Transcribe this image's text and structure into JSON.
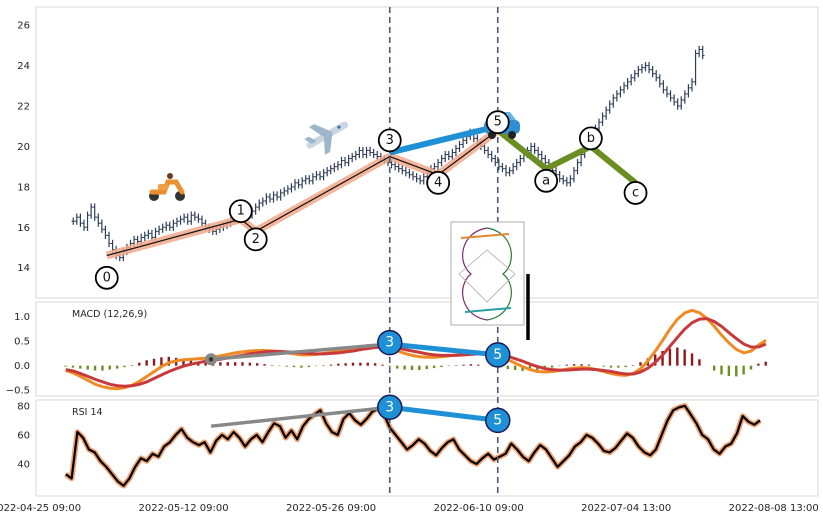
{
  "chart_data": {
    "type": "line",
    "x_axis": {
      "tick_labels": [
        "2022-04-25 09:00",
        "2022-05-12 09:00",
        "2022-05-26 09:00",
        "2022-06-10 09:00",
        "2022-07-04 13:00",
        "2022-08-08 13:00"
      ],
      "range": [
        0,
        210
      ]
    },
    "grid": true,
    "vertical_markers": [
      95,
      124
    ],
    "panels": [
      {
        "id": "price",
        "type": "ohlc",
        "label": "",
        "yticks": [
          14,
          16,
          18,
          20,
          22,
          24,
          26
        ],
        "ylim": [
          12.5,
          26.9
        ],
        "close": [
          16.3,
          16.5,
          16.2,
          16.0,
          16.6,
          17.0,
          16.5,
          16.2,
          15.9,
          15.6,
          15.2,
          14.9,
          14.6,
          14.5,
          14.8,
          15.0,
          15.2,
          15.4,
          15.3,
          15.5,
          15.6,
          15.7,
          15.5,
          15.8,
          15.9,
          16.0,
          16.1,
          16.0,
          16.2,
          16.3,
          16.4,
          16.5,
          16.3,
          16.6,
          16.5,
          16.4,
          16.2,
          16.0,
          15.9,
          15.8,
          15.9,
          16.0,
          16.1,
          16.2,
          16.3,
          16.4,
          16.6,
          16.8,
          16.7,
          16.6,
          16.8,
          17.0,
          17.2,
          17.3,
          17.5,
          17.4,
          17.6,
          17.5,
          17.7,
          17.8,
          17.9,
          18.0,
          18.2,
          18.1,
          18.3,
          18.4,
          18.3,
          18.5,
          18.6,
          18.5,
          18.7,
          18.8,
          18.9,
          19.0,
          19.1,
          19.3,
          19.2,
          19.4,
          19.5,
          19.6,
          19.8,
          19.6,
          19.8,
          19.7,
          19.6,
          19.5,
          19.4,
          19.3,
          19.2,
          19.1,
          19.0,
          18.9,
          18.8,
          18.7,
          18.6,
          18.5,
          18.4,
          18.3,
          18.5,
          18.7,
          18.9,
          19.0,
          19.2,
          19.4,
          19.6,
          19.5,
          19.7,
          19.9,
          20.1,
          20.3,
          20.5,
          20.7,
          20.4,
          20.2,
          20.0,
          19.8,
          19.6,
          19.4,
          19.2,
          19.0,
          18.9,
          18.7,
          18.8,
          19.0,
          19.2,
          19.4,
          19.6,
          19.8,
          20.0,
          19.8,
          19.6,
          19.4,
          19.2,
          19.0,
          18.8,
          18.6,
          18.4,
          18.3,
          18.2,
          18.4,
          18.8,
          19.2,
          19.6,
          20.0,
          20.3,
          20.6,
          20.9,
          21.2,
          21.5,
          21.8,
          22.1,
          22.4,
          22.6,
          22.8,
          23.0,
          23.2,
          23.4,
          23.6,
          23.8,
          23.9,
          24.0,
          23.8,
          23.6,
          23.4,
          23.1,
          22.8,
          22.6,
          22.4,
          22.2,
          22.0,
          22.3,
          22.6,
          22.9,
          23.2,
          24.6,
          24.8,
          24.5
        ]
      },
      {
        "id": "macd",
        "type": "line",
        "label": "MACD (12,26,9)",
        "yticks": [
          -0.5,
          0.0,
          0.5,
          1.0
        ],
        "tick_labels": [
          "−0.5",
          "0.0",
          "0.5",
          "1.0"
        ],
        "ylim": [
          -0.62,
          1.3
        ],
        "macd": [
          -0.1,
          -0.15,
          -0.22,
          -0.3,
          -0.38,
          -0.43,
          -0.46,
          -0.47,
          -0.45,
          -0.4,
          -0.32,
          -0.22,
          -0.12,
          -0.02,
          0.06,
          0.1,
          0.12,
          0.13,
          0.14,
          0.15,
          0.17,
          0.2,
          0.23,
          0.26,
          0.28,
          0.3,
          0.31,
          0.31,
          0.3,
          0.28,
          0.26,
          0.24,
          0.22,
          0.22,
          0.23,
          0.25,
          0.27,
          0.3,
          0.33,
          0.36,
          0.39,
          0.41,
          0.42,
          0.4,
          0.36,
          0.3,
          0.25,
          0.21,
          0.18,
          0.17,
          0.17,
          0.18,
          0.2,
          0.22,
          0.24,
          0.26,
          0.26,
          0.25,
          0.22,
          0.18,
          0.12,
          0.05,
          -0.02,
          -0.08,
          -0.12,
          -0.13,
          -0.12,
          -0.1,
          -0.07,
          -0.05,
          -0.04,
          -0.05,
          -0.08,
          -0.12,
          -0.16,
          -0.19,
          -0.2,
          -0.16,
          -0.06,
          0.1,
          0.3,
          0.52,
          0.75,
          0.95,
          1.08,
          1.13,
          1.08,
          0.96,
          0.8,
          0.62,
          0.46,
          0.33,
          0.26,
          0.3,
          0.42,
          0.52
        ],
        "signal": [
          -0.08,
          -0.11,
          -0.16,
          -0.22,
          -0.28,
          -0.33,
          -0.38,
          -0.41,
          -0.42,
          -0.41,
          -0.38,
          -0.33,
          -0.26,
          -0.19,
          -0.12,
          -0.06,
          -0.01,
          0.03,
          0.06,
          0.09,
          0.11,
          0.13,
          0.16,
          0.19,
          0.21,
          0.24,
          0.26,
          0.28,
          0.29,
          0.29,
          0.28,
          0.27,
          0.26,
          0.25,
          0.24,
          0.24,
          0.25,
          0.26,
          0.28,
          0.3,
          0.33,
          0.35,
          0.37,
          0.38,
          0.38,
          0.36,
          0.33,
          0.3,
          0.27,
          0.24,
          0.22,
          0.21,
          0.21,
          0.21,
          0.22,
          0.23,
          0.24,
          0.25,
          0.24,
          0.22,
          0.19,
          0.14,
          0.09,
          0.03,
          -0.02,
          -0.06,
          -0.08,
          -0.09,
          -0.09,
          -0.08,
          -0.07,
          -0.07,
          -0.08,
          -0.1,
          -0.12,
          -0.15,
          -0.17,
          -0.17,
          -0.13,
          -0.05,
          0.07,
          0.22,
          0.4,
          0.58,
          0.75,
          0.88,
          0.95,
          0.96,
          0.9,
          0.8,
          0.67,
          0.55,
          0.44,
          0.38,
          0.38,
          0.44
        ],
        "bar_colors": {
          "positive": "#8b1a1a",
          "negative": "#6b8e23"
        }
      },
      {
        "id": "rsi",
        "type": "line",
        "label": "RSI 14",
        "yticks": [
          40,
          60,
          80
        ],
        "ylim": [
          18,
          84
        ],
        "values": [
          33,
          30,
          62,
          58,
          50,
          48,
          42,
          38,
          33,
          28,
          25,
          30,
          38,
          44,
          42,
          47,
          45,
          52,
          55,
          60,
          64,
          58,
          55,
          53,
          55,
          48,
          56,
          60,
          57,
          62,
          58,
          52,
          57,
          60,
          55,
          62,
          68,
          66,
          58,
          63,
          57,
          66,
          71,
          74,
          77,
          68,
          62,
          60,
          71,
          75,
          70,
          67,
          71,
          76,
          78,
          74,
          65,
          60,
          55,
          50,
          53,
          57,
          54,
          49,
          46,
          51,
          55,
          57,
          50,
          46,
          42,
          40,
          44,
          47,
          43,
          45,
          47,
          54,
          50,
          45,
          42,
          48,
          53,
          50,
          44,
          38,
          42,
          46,
          52,
          55,
          60,
          58,
          54,
          49,
          48,
          51,
          56,
          61,
          58,
          52,
          48,
          46,
          50,
          60,
          70,
          77,
          79,
          80,
          74,
          68,
          60,
          57,
          50,
          47,
          52,
          54,
          61,
          73,
          69,
          67,
          70
        ]
      }
    ],
    "wave_labels": [
      {
        "panel": "price",
        "text": "0",
        "x": 19,
        "y": 13.5
      },
      {
        "panel": "price",
        "text": "1",
        "x": 55,
        "y": 16.8
      },
      {
        "panel": "price",
        "text": "2",
        "x": 59,
        "y": 15.4
      },
      {
        "panel": "price",
        "text": "3",
        "x": 95,
        "y": 20.3
      },
      {
        "panel": "price",
        "text": "4",
        "x": 108,
        "y": 18.2
      },
      {
        "panel": "price",
        "text": "5",
        "x": 124,
        "y": 21.2
      },
      {
        "panel": "price",
        "text": "a",
        "x": 137,
        "y": 18.3
      },
      {
        "panel": "price",
        "text": "b",
        "x": 149,
        "y": 20.4
      },
      {
        "panel": "price",
        "text": "c",
        "x": 161,
        "y": 17.7
      },
      {
        "panel": "macd",
        "text": "3",
        "x": 95,
        "y": 0.47
      },
      {
        "panel": "macd",
        "text": "5",
        "x": 124,
        "y": 0.22
      },
      {
        "panel": "rsi",
        "text": "3",
        "x": 95,
        "y": 79
      },
      {
        "panel": "rsi",
        "text": "5",
        "x": 124,
        "y": 70
      }
    ],
    "colors": {
      "candles": "#2f3f58",
      "macd_line": "#f08a24",
      "signal_line": "#c8393a",
      "rsi_line": "#000000",
      "rsi_glow": "#f0a070",
      "impulse_band": "#f2a88a",
      "impulse_line": "#111111",
      "blue_segment": "#1e90d6",
      "correction": "#6b8e23",
      "divergence_grey": "#888888",
      "marker_dashes": "#4a5a78",
      "wave_circle_blue": "#1e90d6"
    }
  }
}
